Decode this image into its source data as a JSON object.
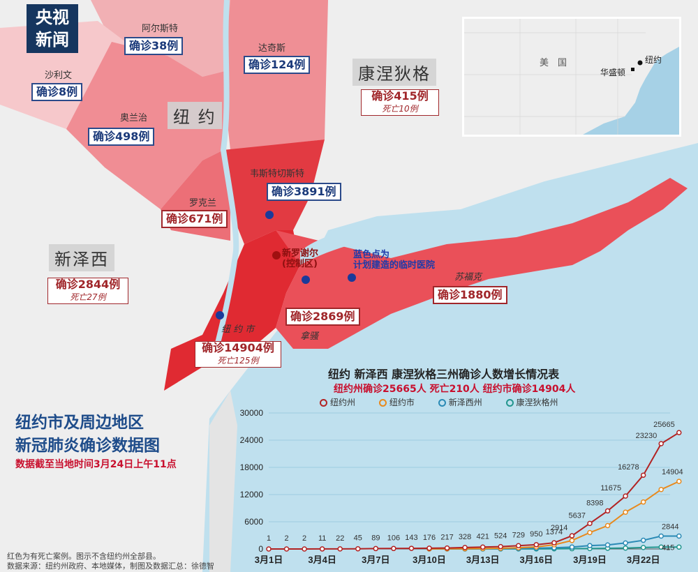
{
  "logo": {
    "line1": "央视",
    "line2": "新闻"
  },
  "title": {
    "line1": "纽约市及周边地区",
    "line2": "新冠肺炎确诊数据图",
    "date": "数据截至当地时间3月24日上午11点"
  },
  "footnote": {
    "line1": "红色为有死亡案例。图示不含纽约州全部县。",
    "line2": "数据来源：纽约州政府、本地媒体，制图及数据汇总：徐德智"
  },
  "regions": {
    "ny": "纽 约",
    "nj": "新泽西",
    "ct": "康涅狄格"
  },
  "counties": {
    "albany": {
      "name": "阿尔斯特",
      "cases": "确诊38例"
    },
    "sullivan": {
      "name": "沙利文",
      "cases": "确诊8例"
    },
    "dutchess": {
      "name": "达奇斯",
      "cases": "确诊124例"
    },
    "orange": {
      "name": "奥兰治",
      "cases": "确诊498例"
    },
    "westchester": {
      "name": "韦斯特切斯特",
      "cases": "确诊3891例"
    },
    "rockland": {
      "name": "罗克兰",
      "cases": "确诊671例"
    },
    "nassau": {
      "name": "拿骚",
      "cases": "确诊2869例"
    },
    "suffolk": {
      "name": "苏福克",
      "cases": "确诊1880例"
    },
    "nyc": {
      "name": "纽 约 市",
      "cases": "确诊14904例",
      "deaths": "死亡125例"
    }
  },
  "states": {
    "ct": {
      "cases": "确诊415例",
      "deaths": "死亡10例"
    },
    "nj": {
      "cases": "确诊2844例",
      "deaths": "死亡27例"
    }
  },
  "annotations": {
    "new_rochelle": "新罗谢尔",
    "control_zone": "(控制区)",
    "hospital_line1": "蓝色点为",
    "hospital_line2": "计划建造的临时医院"
  },
  "inset": {
    "country": "美　国",
    "dc": "华盛顿",
    "nyc": "纽约"
  },
  "chart_title": "纽约 新泽西 康涅狄格三州确诊人数增长情况表",
  "chart_subtitle": "纽约州确诊25665人 死亡210人 纽约市确诊14904人",
  "colors": {
    "nys": "#b22222",
    "nyc": "#e8891c",
    "nj": "#2a8ab5",
    "ct": "#23968e"
  },
  "chart_data": {
    "type": "line",
    "title": "纽约 新泽西 康涅狄格三州确诊人数增长情况表",
    "x_ticks": [
      "3月1日",
      "3月4日",
      "3月7日",
      "3月10日",
      "3月13日",
      "3月16日",
      "3月19日",
      "3月22日"
    ],
    "y_ticks": [
      0,
      6000,
      12000,
      18000,
      24000,
      30000
    ],
    "ylim": [
      0,
      30000
    ],
    "days": [
      1,
      2,
      3,
      4,
      5,
      6,
      7,
      8,
      9,
      10,
      11,
      12,
      13,
      14,
      15,
      16,
      17,
      18,
      19,
      20,
      21,
      22,
      23,
      24
    ],
    "series": [
      {
        "name": "纽约州",
        "color": "#b22222",
        "start_day": 1,
        "values": [
          1,
          2,
          2,
          11,
          22,
          45,
          89,
          106,
          143,
          176,
          217,
          328,
          421,
          524,
          729,
          950,
          1374,
          2914,
          5637,
          8398,
          11675,
          16278,
          23230,
          25665
        ]
      },
      {
        "name": "纽约市",
        "color": "#e8891c",
        "start_day": 10,
        "values": [
          25,
          36,
          53,
          95,
          154,
          269,
          463,
          923,
          1871,
          3615,
          5151,
          8115,
          10356,
          13119,
          14904
        ]
      },
      {
        "name": "新泽西州",
        "color": "#2a8ab5",
        "start_day": 10,
        "values": [
          15,
          23,
          29,
          50,
          69,
          98,
          178,
          267,
          427,
          742,
          890,
          1327,
          1914,
          2844,
          2844
        ]
      },
      {
        "name": "康涅狄格州",
        "color": "#23968e",
        "start_day": 10,
        "values": [
          2,
          3,
          5,
          11,
          11,
          20,
          26,
          41,
          68,
          96,
          159,
          194,
          327,
          415,
          415
        ]
      }
    ],
    "point_labels": [
      1,
      2,
      2,
      11,
      22,
      45,
      89,
      106,
      143,
      176,
      217,
      328,
      421,
      524,
      729,
      950,
      1374,
      2914,
      5637,
      8398,
      11675,
      16278,
      23230,
      25665
    ],
    "end_labels": [
      "14904",
      "2844",
      "415"
    ]
  }
}
